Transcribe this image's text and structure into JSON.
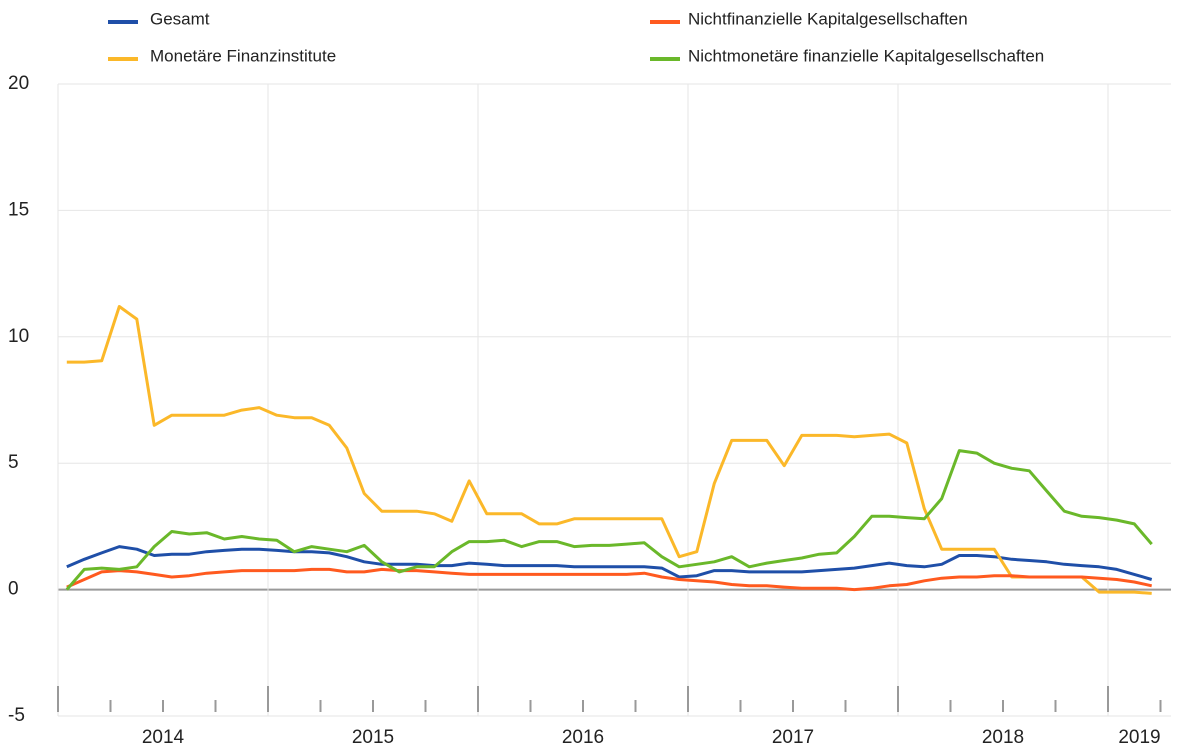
{
  "chart_data": {
    "type": "line",
    "x": [
      2014.042,
      2014.125,
      2014.208,
      2014.292,
      2014.375,
      2014.458,
      2014.542,
      2014.625,
      2014.708,
      2014.792,
      2014.875,
      2014.958,
      2015.042,
      2015.125,
      2015.208,
      2015.292,
      2015.375,
      2015.458,
      2015.542,
      2015.625,
      2015.708,
      2015.792,
      2015.875,
      2015.958,
      2016.042,
      2016.125,
      2016.208,
      2016.292,
      2016.375,
      2016.458,
      2016.542,
      2016.625,
      2016.708,
      2016.792,
      2016.875,
      2016.958,
      2017.042,
      2017.125,
      2017.208,
      2017.292,
      2017.375,
      2017.458,
      2017.542,
      2017.625,
      2017.708,
      2017.792,
      2017.875,
      2017.958,
      2018.042,
      2018.125,
      2018.208,
      2018.292,
      2018.375,
      2018.458,
      2018.542,
      2018.625,
      2018.708,
      2018.792,
      2018.875,
      2018.958,
      2019.042,
      2019.125,
      2019.208
    ],
    "series": [
      {
        "name": "Gesamt",
        "color": "#1f4fa8",
        "values": [
          0.9,
          1.2,
          1.45,
          1.7,
          1.6,
          1.35,
          1.4,
          1.4,
          1.5,
          1.55,
          1.6,
          1.6,
          1.55,
          1.5,
          1.5,
          1.45,
          1.3,
          1.1,
          1.0,
          1.0,
          1.0,
          0.95,
          0.95,
          1.05,
          1.0,
          0.95,
          0.95,
          0.95,
          0.95,
          0.9,
          0.9,
          0.9,
          0.9,
          0.9,
          0.85,
          0.5,
          0.55,
          0.75,
          0.75,
          0.7,
          0.7,
          0.7,
          0.7,
          0.75,
          0.8,
          0.85,
          0.95,
          1.05,
          0.95,
          0.9,
          1.0,
          1.35,
          1.35,
          1.3,
          1.2,
          1.15,
          1.1,
          1.0,
          0.95,
          0.9,
          0.8,
          0.6,
          0.4
        ]
      },
      {
        "name": "Monetäre Finanzinstitute",
        "color": "#fbb829",
        "values": [
          9.0,
          9.0,
          9.05,
          11.2,
          10.7,
          6.5,
          6.9,
          6.9,
          6.9,
          6.9,
          7.1,
          7.2,
          6.9,
          6.8,
          6.8,
          6.5,
          5.6,
          3.8,
          3.1,
          3.1,
          3.1,
          3.0,
          2.7,
          4.3,
          3.0,
          3.0,
          3.0,
          2.6,
          2.6,
          2.8,
          2.8,
          2.8,
          2.8,
          2.8,
          2.8,
          1.3,
          1.5,
          4.2,
          5.9,
          5.9,
          5.9,
          4.9,
          6.1,
          6.1,
          6.1,
          6.05,
          6.1,
          6.15,
          5.8,
          3.2,
          1.6,
          1.6,
          1.6,
          1.6,
          0.5,
          0.5,
          0.5,
          0.5,
          0.5,
          -0.1,
          -0.1,
          -0.1,
          -0.15
        ]
      },
      {
        "name": "Nichtfinanzielle Kapitalgesellschaften",
        "color": "#ff5a1f",
        "values": [
          0.1,
          0.4,
          0.7,
          0.75,
          0.7,
          0.6,
          0.5,
          0.55,
          0.65,
          0.7,
          0.75,
          0.75,
          0.75,
          0.75,
          0.8,
          0.8,
          0.7,
          0.7,
          0.8,
          0.75,
          0.75,
          0.7,
          0.65,
          0.6,
          0.6,
          0.6,
          0.6,
          0.6,
          0.6,
          0.6,
          0.6,
          0.6,
          0.6,
          0.65,
          0.5,
          0.4,
          0.35,
          0.3,
          0.2,
          0.15,
          0.15,
          0.1,
          0.05,
          0.05,
          0.05,
          0.0,
          0.05,
          0.15,
          0.2,
          0.35,
          0.45,
          0.5,
          0.5,
          0.55,
          0.55,
          0.5,
          0.5,
          0.5,
          0.5,
          0.45,
          0.4,
          0.3,
          0.15
        ]
      },
      {
        "name": "Nichtmonetäre finanzielle Kapitalgesellschaften",
        "color": "#6ab82a",
        "values": [
          0,
          0.8,
          0.85,
          0.8,
          0.9,
          1.7,
          2.3,
          2.2,
          2.25,
          2.0,
          2.1,
          2.0,
          1.95,
          1.5,
          1.7,
          1.6,
          1.5,
          1.75,
          1.1,
          0.7,
          0.9,
          0.9,
          1.5,
          1.9,
          1.9,
          1.95,
          1.7,
          1.9,
          1.9,
          1.7,
          1.75,
          1.75,
          1.8,
          1.85,
          1.3,
          0.9,
          1.0,
          1.1,
          1.3,
          0.9,
          1.05,
          1.15,
          1.25,
          1.4,
          1.45,
          2.1,
          2.9,
          2.9,
          2.85,
          2.8,
          3.6,
          5.5,
          5.4,
          5.0,
          4.8,
          4.7,
          3.9,
          3.1,
          2.9,
          2.85,
          2.75,
          2.6,
          1.8
        ]
      }
    ],
    "xlim": [
      2014,
      2019.3
    ],
    "xticks": [
      2014,
      2015,
      2016,
      2017,
      2018,
      2019
    ],
    "ylim": [
      -5,
      20
    ],
    "yticks": [
      -5,
      0,
      5,
      10,
      15,
      20
    ],
    "grid": true
  }
}
